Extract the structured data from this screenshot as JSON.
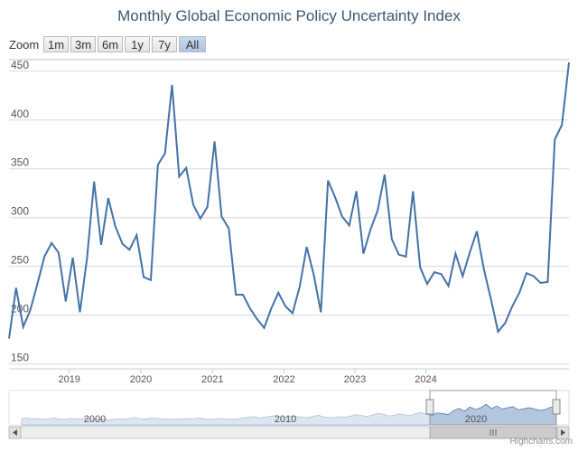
{
  "title": "Monthly Global Economic Policy Uncertainty Index",
  "zoom": {
    "label": "Zoom",
    "buttons": [
      "1m",
      "3m",
      "6m",
      "1y",
      "7y",
      "All"
    ],
    "active": "All"
  },
  "credits": "Highcharts.com",
  "navigator": {
    "labels": [
      "2000",
      "2010",
      "2020"
    ]
  },
  "colors": {
    "line": "#4572a7",
    "navigator_fill": "#b3c6df",
    "navigator_outline": "#4572a7"
  },
  "chart_data": {
    "type": "line",
    "series": [
      {
        "values": [
          [
            2018.6,
            176
          ],
          [
            2018.7,
            228
          ],
          [
            2018.8,
            188
          ],
          [
            2018.9,
            205
          ],
          [
            2019.0,
            232
          ],
          [
            2019.1,
            260
          ],
          [
            2019.2,
            274
          ],
          [
            2019.3,
            264
          ],
          [
            2019.4,
            214
          ],
          [
            2019.5,
            259
          ],
          [
            2019.6,
            203
          ],
          [
            2019.7,
            258
          ],
          [
            2019.8,
            337
          ],
          [
            2019.9,
            272
          ],
          [
            2020.0,
            320
          ],
          [
            2020.1,
            291
          ],
          [
            2020.2,
            273
          ],
          [
            2020.3,
            267
          ],
          [
            2020.4,
            282
          ],
          [
            2020.5,
            239
          ],
          [
            2020.6,
            236
          ],
          [
            2020.7,
            354
          ],
          [
            2020.8,
            366
          ],
          [
            2020.9,
            436
          ],
          [
            2021.0,
            342
          ],
          [
            2021.1,
            351
          ],
          [
            2021.2,
            313
          ],
          [
            2021.3,
            299
          ],
          [
            2021.4,
            311
          ],
          [
            2021.5,
            378
          ],
          [
            2021.6,
            301
          ],
          [
            2021.7,
            289
          ],
          [
            2021.8,
            221
          ],
          [
            2021.9,
            221
          ],
          [
            2022.0,
            207
          ],
          [
            2022.1,
            196
          ],
          [
            2022.2,
            187
          ],
          [
            2022.3,
            207
          ],
          [
            2022.4,
            223
          ],
          [
            2022.5,
            209
          ],
          [
            2022.6,
            202
          ],
          [
            2022.7,
            229
          ],
          [
            2022.8,
            270
          ],
          [
            2022.9,
            241
          ],
          [
            2023.0,
            203
          ],
          [
            2023.1,
            338
          ],
          [
            2023.2,
            321
          ],
          [
            2023.3,
            301
          ],
          [
            2023.4,
            292
          ],
          [
            2023.5,
            327
          ],
          [
            2023.6,
            263
          ],
          [
            2023.7,
            288
          ],
          [
            2023.8,
            307
          ],
          [
            2023.9,
            344
          ],
          [
            2024.0,
            278
          ],
          [
            2024.1,
            262
          ],
          [
            2024.2,
            260
          ],
          [
            2024.3,
            327
          ],
          [
            2024.4,
            249
          ],
          [
            2024.5,
            232
          ],
          [
            2024.6,
            244
          ],
          [
            2024.7,
            242
          ],
          [
            2024.8,
            230
          ],
          [
            2024.9,
            263
          ],
          [
            2025.0,
            240
          ],
          [
            2025.1,
            264
          ],
          [
            2025.2,
            286
          ],
          [
            2025.3,
            247
          ],
          [
            2025.4,
            216
          ],
          [
            2025.5,
            183
          ],
          [
            2025.6,
            192
          ],
          [
            2025.7,
            209
          ],
          [
            2025.8,
            223
          ],
          [
            2025.9,
            243
          ],
          [
            2026.0,
            240
          ],
          [
            2026.1,
            233
          ],
          [
            2026.2,
            234
          ],
          [
            2026.3,
            380
          ],
          [
            2026.4,
            395
          ],
          [
            2026.5,
            459
          ]
        ]
      }
    ],
    "x_ticks": [
      {
        "value": 2019.45,
        "label": "2019"
      },
      {
        "value": 2020.46,
        "label": "2020"
      },
      {
        "value": 2021.47,
        "label": "2021"
      },
      {
        "value": 2022.48,
        "label": "2022"
      },
      {
        "value": 2023.48,
        "label": "2023"
      },
      {
        "value": 2024.48,
        "label": "2024"
      }
    ],
    "y_ticks": [
      150,
      200,
      250,
      300,
      350,
      400,
      450
    ],
    "xlim": [
      2018.6,
      2026.5
    ],
    "ylim": [
      145,
      460
    ],
    "grid": true,
    "navigator_values": [
      0.18,
      0.2,
      0.17,
      0.19,
      0.16,
      0.18,
      0.2,
      0.17,
      0.16,
      0.19,
      0.18,
      0.17,
      0.2,
      0.18,
      0.16,
      0.17,
      0.15,
      0.16,
      0.18,
      0.17,
      0.19,
      0.22,
      0.18,
      0.17,
      0.2,
      0.19,
      0.18,
      0.17,
      0.16,
      0.18,
      0.17,
      0.19,
      0.18,
      0.2,
      0.17,
      0.16,
      0.18,
      0.19,
      0.17,
      0.16,
      0.18,
      0.2,
      0.22,
      0.24,
      0.2,
      0.22,
      0.25,
      0.27,
      0.23,
      0.22,
      0.26,
      0.24,
      0.22,
      0.21,
      0.25,
      0.28,
      0.23,
      0.22,
      0.21,
      0.24,
      0.22,
      0.26,
      0.3,
      0.27,
      0.25,
      0.29,
      0.34,
      0.31,
      0.26,
      0.28,
      0.32,
      0.29,
      0.27,
      0.33,
      0.36,
      0.3,
      0.28,
      0.35,
      0.33,
      0.3,
      0.42,
      0.48,
      0.4,
      0.52,
      0.45,
      0.5,
      0.6,
      0.48,
      0.55,
      0.46,
      0.5,
      0.53,
      0.44,
      0.47,
      0.5,
      0.46,
      0.42,
      0.45,
      0.52,
      0.48
    ]
  }
}
